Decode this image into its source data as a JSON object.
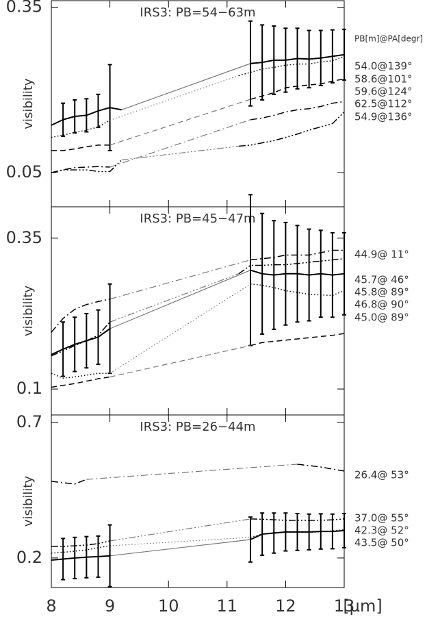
{
  "chart_data": [
    {
      "type": "line",
      "title": "IRS3:  PB=54−63m",
      "ylabel": "visibility",
      "legend_title": "PB[m]@PA[degr]",
      "x": [
        8.0,
        8.2,
        8.4,
        8.6,
        8.8,
        9.0,
        9.2,
        11.2,
        11.4,
        11.6,
        11.8,
        12.0,
        12.2,
        12.4,
        12.6,
        12.8,
        13.0
      ],
      "xlim": [
        8,
        13
      ],
      "ylim": [
        -0.012,
        0.362
      ],
      "yticks": [
        0.05,
        0.35
      ],
      "series": [
        {
          "name": "54.0@139°",
          "color": "#000000",
          "style": "solid",
          "values": [
            0.136,
            0.146,
            0.152,
            0.154,
            0.162,
            0.168,
            0.164,
            null,
            0.248,
            0.25,
            0.254,
            0.254,
            0.257,
            0.256,
            0.258,
            0.261,
            0.264
          ],
          "errors": [
            null,
            0.03,
            0.03,
            0.03,
            0.03,
            0.078,
            null,
            null,
            0.077,
            0.068,
            0.062,
            0.058,
            0.055,
            0.052,
            0.05,
            0.048,
            0.046
          ]
        },
        {
          "name": "58.6@101°",
          "color": "#000000",
          "style": "dotted",
          "values": [
            0.114,
            0.118,
            0.123,
            0.127,
            0.133,
            0.145,
            null,
            0.226,
            0.232,
            0.238,
            0.241,
            0.245,
            0.247,
            0.247,
            0.251,
            0.253,
            0.261
          ]
        },
        {
          "name": "59.6@124°",
          "color": "#000000",
          "style": "dashed",
          "values": [
            0.09,
            0.09,
            0.093,
            0.097,
            0.1,
            0.1,
            null,
            null,
            0.183,
            0.189,
            0.195,
            0.204,
            0.207,
            0.209,
            0.211,
            0.216,
            0.22
          ]
        },
        {
          "name": "62.5@112°",
          "color": "#000000",
          "style": "dashdot",
          "values": [
            0.05,
            0.055,
            0.059,
            0.06,
            0.061,
            0.06,
            null,
            null,
            0.146,
            0.149,
            0.154,
            0.16,
            0.164,
            0.166,
            0.17,
            0.176,
            0.179
          ]
        },
        {
          "name": "54.9@136°",
          "color": "#000000",
          "style": "dashdotdot",
          "values": [
            0.05,
            0.055,
            0.055,
            0.055,
            0.052,
            0.052,
            0.073,
            0.098,
            0.1,
            0.104,
            0.108,
            0.114,
            0.12,
            0.127,
            0.133,
            0.139,
            0.16
          ]
        }
      ]
    },
    {
      "type": "line",
      "title": "IRS3:  PB=45−47m",
      "ylabel": "visibility",
      "x": [
        8.0,
        8.2,
        8.4,
        8.6,
        8.8,
        9.0,
        9.2,
        11.2,
        11.4,
        11.6,
        11.8,
        12.0,
        12.2,
        12.4,
        12.6,
        12.8,
        13.0
      ],
      "xlim": [
        8,
        13
      ],
      "ylim": [
        0.057,
        0.402
      ],
      "yticks": [
        0.1,
        0.35
      ],
      "series": [
        {
          "name": "44.9@ 11°",
          "color": "#000000",
          "style": "dashdot",
          "values": [
            0.194,
            0.217,
            0.232,
            0.24,
            0.245,
            0.249,
            null,
            null,
            0.314,
            0.316,
            0.318,
            0.322,
            0.322,
            0.322,
            0.326,
            0.33,
            0.33
          ]
        },
        {
          "name": "45.7@ 46°",
          "color": "#000000",
          "style": "dashdotdot",
          "values": [
            0.155,
            0.163,
            0.172,
            0.18,
            0.189,
            0.211,
            null,
            0.291,
            0.305,
            0.305,
            0.306,
            0.306,
            0.308,
            0.31,
            0.312,
            0.314,
            0.316
          ]
        },
        {
          "name": "45.8@ 89°",
          "color": "#000000",
          "style": "solid",
          "values": [
            0.157,
            0.166,
            0.174,
            0.18,
            0.186,
            0.2,
            null,
            null,
            0.297,
            0.291,
            0.289,
            0.291,
            0.291,
            0.289,
            0.291,
            0.289,
            0.291
          ],
          "errors": [
            null,
            0.045,
            0.045,
            0.045,
            0.045,
            0.074,
            null,
            null,
            0.125,
            0.1,
            0.09,
            0.085,
            0.08,
            0.076,
            0.072,
            0.07,
            0.068
          ]
        },
        {
          "name": "46.8@ 90°",
          "color": "#000000",
          "style": "dotted",
          "values": [
            0.126,
            0.118,
            0.12,
            0.123,
            0.126,
            0.126,
            null,
            null,
            0.274,
            0.272,
            0.268,
            0.263,
            0.26,
            0.257,
            0.256,
            0.255,
            0.263
          ]
        },
        {
          "name": "45.0@ 89°",
          "color": "#000000",
          "style": "dashed",
          "values": [
            0.103,
            0.106,
            0.109,
            0.113,
            0.117,
            0.12,
            null,
            null,
            0.172,
            0.177,
            0.179,
            0.181,
            0.183,
            0.185,
            0.187,
            0.189,
            0.192
          ]
        }
      ]
    },
    {
      "type": "line",
      "title": "IRS3:  PB=26−44m",
      "ylabel": "visibility",
      "xlabel": "[µm]",
      "x": [
        8.0,
        8.2,
        8.4,
        8.6,
        8.8,
        9.0,
        9.2,
        11.2,
        11.4,
        11.6,
        11.8,
        12.0,
        12.2,
        12.4,
        12.6,
        12.8,
        13.0
      ],
      "xlim": [
        8,
        13
      ],
      "xticks": [
        8,
        9,
        10,
        11,
        12,
        13
      ],
      "ylim": [
        0.091,
        0.728
      ],
      "yticks": [
        0.2,
        0.7
      ],
      "series": [
        {
          "name": "26.4@ 53°",
          "color": "#000000",
          "style": "dashdot",
          "values": [
            0.483,
            0.478,
            0.473,
            0.49,
            null,
            null,
            null,
            null,
            null,
            null,
            null,
            null,
            0.546,
            0.541,
            0.536,
            0.528,
            0.521
          ]
        },
        {
          "name": "37.0@ 55°",
          "color": "#000000",
          "style": "dashdotdot",
          "values": [
            0.243,
            0.243,
            0.245,
            0.248,
            0.253,
            0.263,
            null,
            null,
            0.344,
            0.343,
            0.341,
            0.339,
            0.339,
            0.339,
            0.339,
            0.341,
            0.344
          ]
        },
        {
          "name": "42.3@ 52°",
          "color": "#000000",
          "style": "dotted",
          "values": [
            0.218,
            0.221,
            0.225,
            0.23,
            0.238,
            0.245,
            null,
            null,
            0.276,
            0.288,
            0.293,
            0.295,
            0.295,
            0.294,
            0.297,
            0.3,
            0.304
          ]
        },
        {
          "name": "43.5@ 50°",
          "color": "#000000",
          "style": "solid",
          "values": [
            0.192,
            0.196,
            0.2,
            0.203,
            0.205,
            0.208,
            null,
            null,
            0.268,
            0.288,
            0.292,
            0.296,
            0.296,
            0.296,
            0.298,
            0.298,
            0.301
          ],
          "errors": [
            null,
            0.076,
            0.076,
            0.076,
            0.076,
            0.114,
            null,
            null,
            0.083,
            0.078,
            0.074,
            0.07,
            0.068,
            0.066,
            0.065,
            0.064,
            0.063
          ]
        }
      ]
    }
  ]
}
